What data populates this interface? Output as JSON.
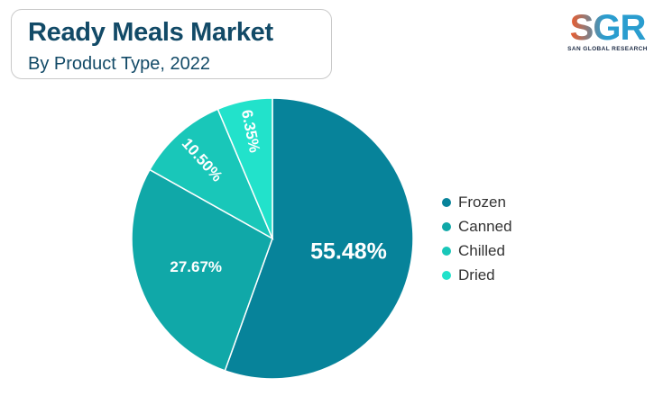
{
  "header": {
    "title": "Ready Meals Market",
    "subtitle": "By Product Type, 2022"
  },
  "logo": {
    "mark": "SGR",
    "tagline": "SAN GLOBAL RESEARCH",
    "colors": [
      "#f15a29",
      "#2a9dcf"
    ]
  },
  "chart_data": {
    "type": "pie",
    "title": "Ready Meals Market",
    "subtitle": "By Product Type, 2022",
    "start_angle": "12 o'clock, clockwise",
    "legend_position": "right",
    "categories": [
      "Frozen",
      "Canned",
      "Chilled",
      "Dried"
    ],
    "values": [
      55.48,
      27.67,
      10.5,
      6.35
    ],
    "labels": [
      "55.48%",
      "27.67%",
      "10.50%",
      "6.35%"
    ],
    "colors": [
      "#07839a",
      "#10a8a8",
      "#19c7b9",
      "#22e2cb"
    ]
  }
}
